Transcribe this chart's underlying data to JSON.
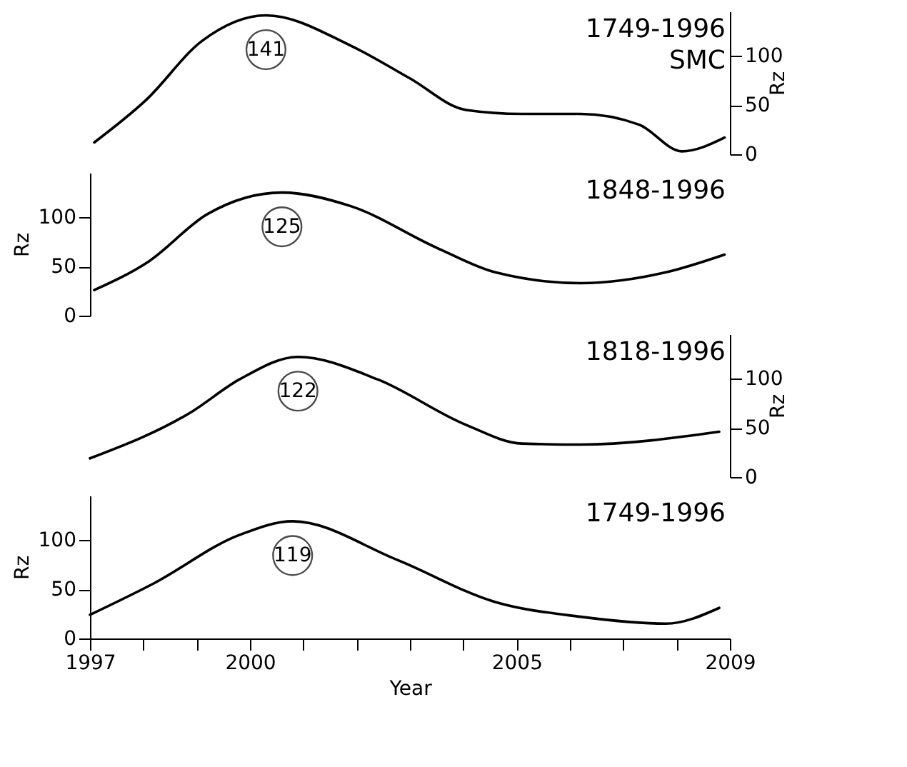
{
  "chart_data": [
    {
      "type": "line",
      "xlim": [
        1997,
        2009
      ],
      "y2lim": [
        0,
        145
      ],
      "y2ticks": [
        0,
        50,
        100
      ],
      "y2label": "Rz",
      "tick_labels": "y2",
      "grid": false,
      "marker": "none",
      "line_style": "solid",
      "annotations": [
        "141"
      ],
      "series": [
        {
          "name": "1749-1996 SMC",
          "color": "#000000",
          "axis": "y2",
          "x": [
            1997.08,
            1998.05,
            1999.1,
            2000.3,
            2001.9,
            2003.0,
            2004.05,
            2005.1,
            2006.2,
            2007.3,
            2008.1,
            2008.9
          ],
          "values": [
            12,
            55,
            115,
            141,
            110,
            77,
            45,
            41,
            41,
            30,
            3,
            17
          ]
        }
      ]
    },
    {
      "type": "line",
      "xlim": [
        1997,
        2009
      ],
      "ylim": [
        0,
        145
      ],
      "yticks": [
        0,
        50,
        100
      ],
      "ylabel": "Rz",
      "tick_labels": "y",
      "grid": false,
      "marker": "none",
      "line_style": "solid",
      "annotations": [
        {
          "text": "125",
          "x": 2000.6,
          "y": 125
        }
      ],
      "series": [
        {
          "name": "1848-1996",
          "color": "#000000",
          "x": [
            1997.08,
            1998.1,
            1999.2,
            2000.6,
            2001.9,
            2003.5,
            2004.6,
            2006.2,
            2007.8,
            2008.9
          ],
          "values": [
            26,
            55,
            103,
            125,
            111,
            69,
            44,
            33,
            44,
            62
          ]
        }
      ]
    },
    {
      "type": "line",
      "xlim": [
        1997,
        2009
      ],
      "y2lim": [
        0,
        145
      ],
      "y2ticks": [
        0,
        50,
        100
      ],
      "y2label": "Rz",
      "tick_labels": "y2",
      "grid": false,
      "marker": "none",
      "line_style": "solid",
      "annotations": [
        "122"
      ],
      "series": [
        {
          "name": "1818-1996",
          "color": "#000000",
          "axis": "y2",
          "x": [
            1997.0,
            1998.9,
            1999.8,
            2000.9,
            2002.4,
            2004.05,
            2005.1,
            2006.2,
            2008.8
          ],
          "values": [
            19,
            66,
            99,
            122,
            99,
            53,
            34,
            33,
            46
          ]
        }
      ]
    },
    {
      "type": "line",
      "xlim": [
        1997,
        2009
      ],
      "xticks": [
        1997,
        {
          "value": 1998,
          "label": null
        },
        {
          "value": 1999,
          "label": null
        },
        2000,
        {
          "value": 2001,
          "label": null
        },
        {
          "value": 2002,
          "label": null
        },
        {
          "value": 2003,
          "label": null
        },
        {
          "value": 2004,
          "label": null
        },
        2005,
        {
          "value": 2006,
          "label": null
        },
        {
          "value": 2007,
          "label": null
        },
        {
          "value": 2008,
          "label": null
        },
        2009
      ],
      "xlabel": "Year",
      "ylim": [
        0,
        145
      ],
      "yticks": [
        0,
        50,
        100
      ],
      "ylabel": "Rz",
      "grid": false,
      "marker": "none",
      "line_style": "solid",
      "annotations": [
        {
          "text": "119",
          "x": 2000.8,
          "y": 119
        }
      ],
      "series": [
        {
          "name": "1749-1996",
          "color": "#000000",
          "x": [
            1997.0,
            1998.2,
            1999.8,
            2000.8,
            2002.75,
            2004.6,
            2006.2,
            2007.8,
            2008.8
          ],
          "values": [
            24,
            56,
            105,
            119,
            80,
            37,
            22,
            15,
            31
          ]
        }
      ]
    }
  ]
}
